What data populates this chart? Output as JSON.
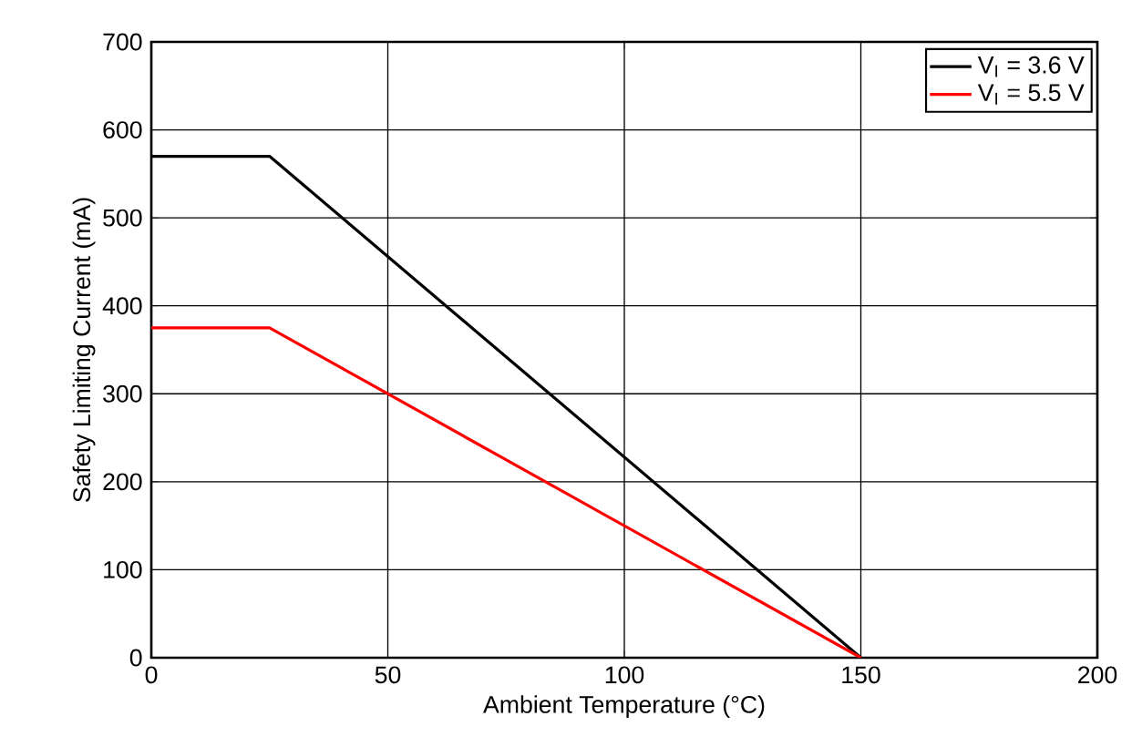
{
  "chart_data": {
    "type": "line",
    "xlabel": "Ambient Temperature (°C)",
    "ylabel": "Safety Limiting Current (mA)",
    "xlim": [
      0,
      200
    ],
    "ylim": [
      0,
      700
    ],
    "xticks": [
      0,
      50,
      100,
      150,
      200
    ],
    "yticks": [
      0,
      100,
      200,
      300,
      400,
      500,
      600,
      700
    ],
    "grid": true,
    "legend": "top right",
    "series": [
      {
        "name": "V$_{I}$ = 3.6 V",
        "color": "#000000",
        "x": [
          0,
          25,
          150
        ],
        "values": [
          570,
          570,
          0
        ]
      },
      {
        "name": "V$_{I}$ = 5.5 V",
        "color": "#ff0000",
        "x": [
          0,
          25,
          150
        ],
        "values": [
          375,
          375,
          0
        ]
      }
    ]
  }
}
